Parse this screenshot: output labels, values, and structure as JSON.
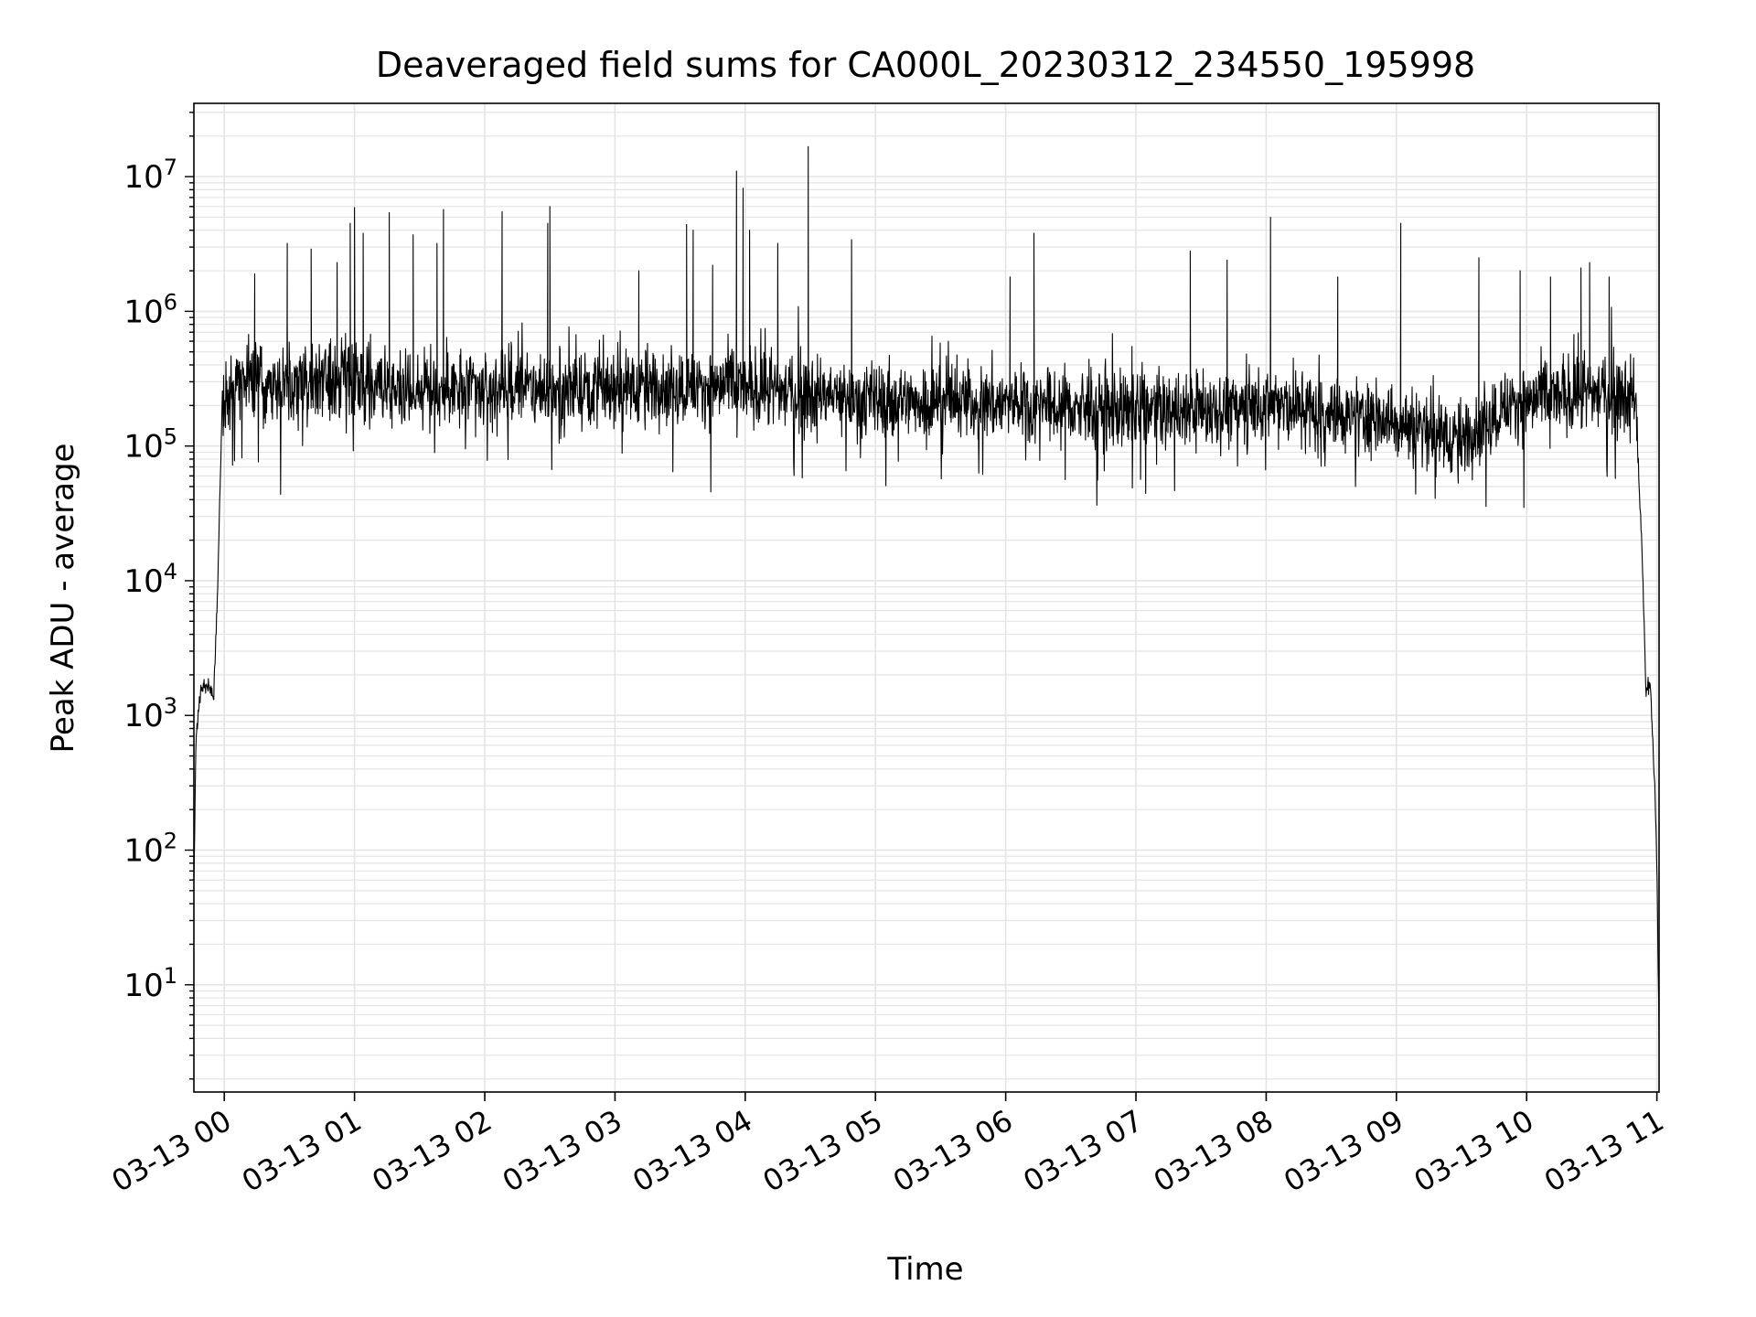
{
  "chart_data": {
    "type": "line",
    "title": "Deaveraged field sums for CA000L_20230312_234550_195998",
    "xlabel": "Time",
    "ylabel": "Peak ADU - average",
    "yscale": "log",
    "ylim": [
      1.6,
      35000000
    ],
    "xlim": [
      "2023-03-12 23:46",
      "2023-03-13 11:01"
    ],
    "grid": true,
    "x_tick_labels": [
      "03-13 00",
      "03-13 01",
      "03-13 02",
      "03-13 03",
      "03-13 04",
      "03-13 05",
      "03-13 06",
      "03-13 07",
      "03-13 08",
      "03-13 09",
      "03-13 10",
      "03-13 11"
    ],
    "x_tick_times": [
      "2023-03-13 00:00",
      "2023-03-13 01:00",
      "2023-03-13 02:00",
      "2023-03-13 03:00",
      "2023-03-13 04:00",
      "2023-03-13 05:00",
      "2023-03-13 06:00",
      "2023-03-13 07:00",
      "2023-03-13 08:00",
      "2023-03-13 09:00",
      "2023-03-13 10:00",
      "2023-03-13 11:00"
    ],
    "y_tick_exponents": [
      1,
      2,
      3,
      4,
      5,
      6,
      7
    ],
    "line_color": "#000000",
    "envelope": [
      [
        "2023-03-12 23:46",
        60
      ],
      [
        "2023-03-12 23:47",
        700
      ],
      [
        "2023-03-12 23:49",
        1500
      ],
      [
        "2023-03-12 23:53",
        1700
      ],
      [
        "2023-03-12 23:55",
        1300
      ],
      [
        "2023-03-12 23:57",
        10000
      ],
      [
        "2023-03-12 23:59",
        200000
      ],
      [
        "2023-03-13 00:10",
        300000
      ],
      [
        "2023-03-13 02:00",
        260000
      ],
      [
        "2023-03-13 03:20",
        280000
      ],
      [
        "2023-03-13 04:00",
        270000
      ],
      [
        "2023-03-13 05:00",
        220000
      ],
      [
        "2023-03-13 06:00",
        210000
      ],
      [
        "2023-03-13 07:00",
        180000
      ],
      [
        "2023-03-13 08:00",
        200000
      ],
      [
        "2023-03-13 08:30",
        180000
      ],
      [
        "2023-03-13 09:10",
        140000
      ],
      [
        "2023-03-13 09:30",
        110000
      ],
      [
        "2023-03-13 09:50",
        200000
      ],
      [
        "2023-03-13 10:30",
        250000
      ],
      [
        "2023-03-13 10:50",
        240000
      ],
      [
        "2023-03-13 10:53",
        20000
      ],
      [
        "2023-03-13 10:55",
        1500
      ],
      [
        "2023-03-13 10:57",
        1700
      ],
      [
        "2023-03-13 10:59",
        300
      ],
      [
        "2023-03-13 11:00",
        80
      ],
      [
        "2023-03-13 11:01",
        4
      ]
    ],
    "spikes": [
      [
        "2023-03-13 00:14",
        1900000
      ],
      [
        "2023-03-13 00:29",
        3200000
      ],
      [
        "2023-03-13 00:40",
        2900000
      ],
      [
        "2023-03-13 00:52",
        2300000
      ],
      [
        "2023-03-13 00:58",
        4500000
      ],
      [
        "2023-03-13 01:00",
        5900000
      ],
      [
        "2023-03-13 01:04",
        3800000
      ],
      [
        "2023-03-13 01:16",
        5400000
      ],
      [
        "2023-03-13 01:27",
        3700000
      ],
      [
        "2023-03-13 01:38",
        3200000
      ],
      [
        "2023-03-13 01:41",
        5700000
      ],
      [
        "2023-03-13 02:08",
        5500000
      ],
      [
        "2023-03-13 02:29",
        4500000
      ],
      [
        "2023-03-13 02:30",
        6000000
      ],
      [
        "2023-03-13 03:11",
        2000000
      ],
      [
        "2023-03-13 03:33",
        4400000
      ],
      [
        "2023-03-13 03:36",
        4000000
      ],
      [
        "2023-03-13 03:45",
        2200000
      ],
      [
        "2023-03-13 03:56",
        11000000
      ],
      [
        "2023-03-13 03:59",
        8200000
      ],
      [
        "2023-03-13 04:02",
        4000000
      ],
      [
        "2023-03-13 04:15",
        3200000
      ],
      [
        "2023-03-13 04:29",
        16700000
      ],
      [
        "2023-03-13 04:49",
        3400000
      ],
      [
        "2023-03-13 06:02",
        1800000
      ],
      [
        "2023-03-13 06:13",
        3800000
      ],
      [
        "2023-03-13 07:25",
        2800000
      ],
      [
        "2023-03-13 07:42",
        2400000
      ],
      [
        "2023-03-13 08:02",
        5000000
      ],
      [
        "2023-03-13 08:33",
        1800000
      ],
      [
        "2023-03-13 09:02",
        4500000
      ],
      [
        "2023-03-13 09:38",
        2500000
      ],
      [
        "2023-03-13 09:57",
        2000000
      ],
      [
        "2023-03-13 10:11",
        1800000
      ],
      [
        "2023-03-13 10:25",
        2100000
      ],
      [
        "2023-03-13 10:29",
        2300000
      ],
      [
        "2023-03-13 10:38",
        1800000
      ]
    ]
  }
}
